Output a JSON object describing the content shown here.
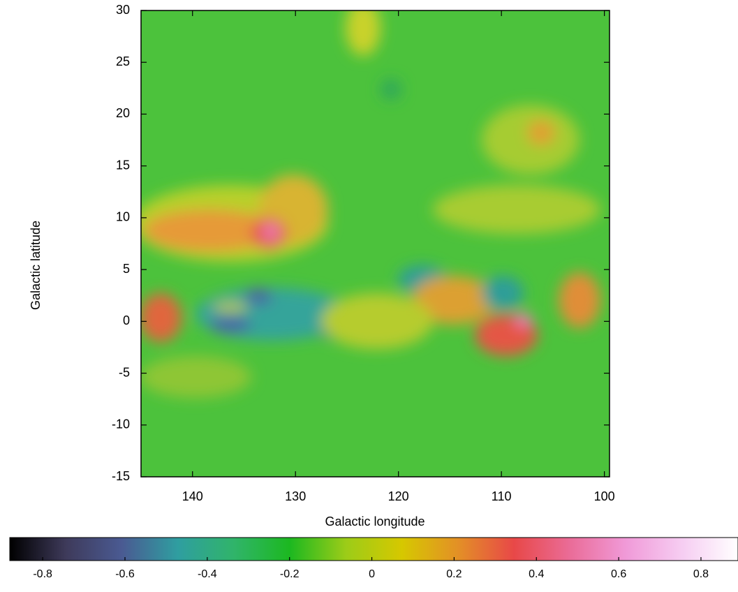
{
  "chart_data": {
    "type": "heatmap",
    "xlabel": "Galactic longitude",
    "ylabel": "Galactic latitude",
    "xlim": [
      145,
      99.5
    ],
    "xticks": [
      140,
      130,
      120,
      110,
      100
    ],
    "ylim": [
      -15,
      30
    ],
    "yticks": [
      -15,
      -10,
      -5,
      0,
      5,
      10,
      15,
      20,
      25,
      30
    ],
    "colorbar": {
      "clim": [
        -0.88,
        0.89
      ],
      "ticks": [
        -0.8,
        -0.6,
        -0.4,
        -0.2,
        0,
        0.2,
        0.4,
        0.6,
        0.8
      ],
      "colormap": [
        "#000000",
        "#3e3a5a",
        "#4a5a92",
        "#2f9ea0",
        "#30b46a",
        "#1cb820",
        "#9ccc18",
        "#d6c800",
        "#e39026",
        "#e84848",
        "#ea6c98",
        "#f09ad8",
        "#f6cdf2",
        "#ffffff"
      ]
    }
  }
}
